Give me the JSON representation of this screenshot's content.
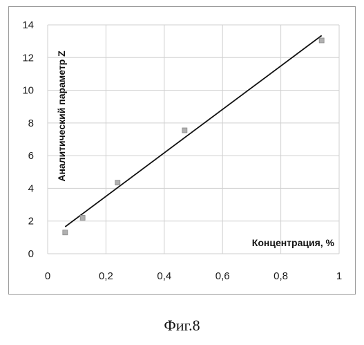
{
  "caption": "Фиг.8",
  "chart_data": {
    "type": "scatter",
    "xlabel": "Концентрация, %",
    "ylabel": "Аналитический параметр Z",
    "xlim": [
      0,
      1
    ],
    "ylim": [
      0,
      14
    ],
    "x_ticks": [
      "0",
      "0,2",
      "0,4",
      "0,6",
      "0,8",
      "1"
    ],
    "y_ticks": [
      "0",
      "2",
      "4",
      "6",
      "8",
      "10",
      "12",
      "14"
    ],
    "x_tick_values": [
      0,
      0.2,
      0.4,
      0.6,
      0.8,
      1.0
    ],
    "y_tick_values": [
      0,
      2,
      4,
      6,
      8,
      10,
      12,
      14
    ],
    "grid": true,
    "legend": "none",
    "series": [
      {
        "points": [
          {
            "x": 0.06,
            "y": 1.3
          },
          {
            "x": 0.12,
            "y": 2.2
          },
          {
            "x": 0.24,
            "y": 4.35
          },
          {
            "x": 0.47,
            "y": 7.55
          },
          {
            "x": 0.94,
            "y": 13.05
          }
        ],
        "marker_color": "#b0b0b0"
      }
    ],
    "trendline": {
      "type": "linear",
      "x_start": 0.06,
      "y_start": 1.65,
      "x_end": 0.94,
      "y_end": 13.35,
      "color": "#111111"
    }
  }
}
